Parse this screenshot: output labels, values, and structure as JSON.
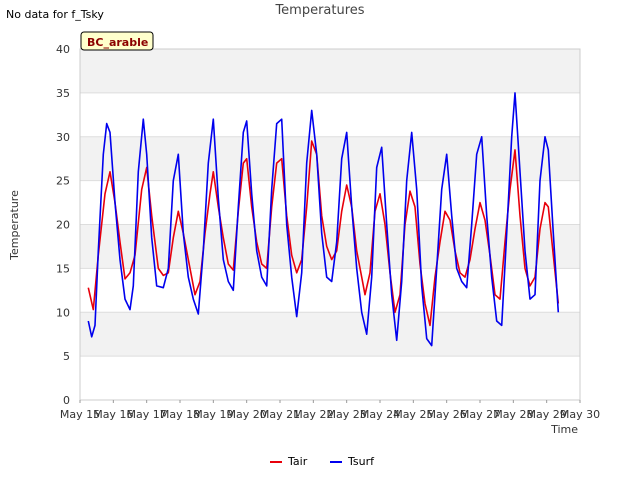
{
  "note": "No data for f_Tsky",
  "chart_data": {
    "type": "line",
    "title": "Temperatures",
    "xlabel": "Time",
    "ylabel": "Temperature",
    "site_label": "BC_arable",
    "ylim": [
      0,
      40
    ],
    "xlim": [
      15,
      30
    ],
    "yticks": [
      0,
      5,
      10,
      15,
      20,
      25,
      30,
      35,
      40
    ],
    "xticks": [
      {
        "value": 15,
        "label": "May 15"
      },
      {
        "value": 16,
        "label": "May 16"
      },
      {
        "value": 17,
        "label": "May 17"
      },
      {
        "value": 18,
        "label": "May 18"
      },
      {
        "value": 19,
        "label": "May 19"
      },
      {
        "value": 20,
        "label": "May 20"
      },
      {
        "value": 21,
        "label": "May 21"
      },
      {
        "value": 22,
        "label": "May 22"
      },
      {
        "value": 23,
        "label": "May 23"
      },
      {
        "value": 24,
        "label": "May 24"
      },
      {
        "value": 25,
        "label": "May 25"
      },
      {
        "value": 26,
        "label": "May 26"
      },
      {
        "value": 27,
        "label": "May 27"
      },
      {
        "value": 28,
        "label": "May 28"
      },
      {
        "value": 29,
        "label": "May 29"
      },
      {
        "value": 30,
        "label": "May 30"
      }
    ],
    "series": [
      {
        "name": "Tair",
        "color": "#e8000b",
        "points": [
          [
            15.25,
            12.8
          ],
          [
            15.4,
            10.3
          ],
          [
            15.55,
            16.5
          ],
          [
            15.75,
            23.5
          ],
          [
            15.9,
            26.0
          ],
          [
            16.05,
            22.5
          ],
          [
            16.2,
            18.0
          ],
          [
            16.35,
            13.8
          ],
          [
            16.5,
            14.5
          ],
          [
            16.65,
            16.5
          ],
          [
            16.85,
            24.0
          ],
          [
            17.0,
            26.5
          ],
          [
            17.15,
            21.0
          ],
          [
            17.35,
            15.0
          ],
          [
            17.5,
            14.2
          ],
          [
            17.65,
            14.5
          ],
          [
            17.8,
            18.5
          ],
          [
            17.95,
            21.5
          ],
          [
            18.1,
            19.0
          ],
          [
            18.3,
            15.0
          ],
          [
            18.45,
            12.0
          ],
          [
            18.6,
            13.5
          ],
          [
            18.75,
            19.0
          ],
          [
            18.9,
            23.5
          ],
          [
            19.0,
            26.0
          ],
          [
            19.15,
            22.0
          ],
          [
            19.3,
            18.5
          ],
          [
            19.45,
            15.5
          ],
          [
            19.6,
            14.8
          ],
          [
            19.75,
            21.5
          ],
          [
            19.9,
            27.0
          ],
          [
            20.0,
            27.5
          ],
          [
            20.15,
            22.0
          ],
          [
            20.3,
            18.0
          ],
          [
            20.45,
            15.5
          ],
          [
            20.6,
            15.0
          ],
          [
            20.75,
            22.0
          ],
          [
            20.9,
            27.0
          ],
          [
            21.05,
            27.5
          ],
          [
            21.2,
            21.0
          ],
          [
            21.35,
            16.5
          ],
          [
            21.5,
            14.5
          ],
          [
            21.65,
            16.0
          ],
          [
            21.8,
            22.0
          ],
          [
            21.95,
            29.5
          ],
          [
            22.1,
            28.0
          ],
          [
            22.25,
            21.0
          ],
          [
            22.4,
            17.5
          ],
          [
            22.55,
            16.0
          ],
          [
            22.7,
            17.0
          ],
          [
            22.85,
            21.5
          ],
          [
            23.0,
            24.5
          ],
          [
            23.15,
            22.0
          ],
          [
            23.3,
            17.0
          ],
          [
            23.45,
            14.0
          ],
          [
            23.55,
            12.0
          ],
          [
            23.7,
            14.5
          ],
          [
            23.85,
            21.5
          ],
          [
            24.0,
            23.5
          ],
          [
            24.15,
            20.0
          ],
          [
            24.3,
            14.5
          ],
          [
            24.45,
            10.0
          ],
          [
            24.6,
            12.0
          ],
          [
            24.75,
            20.0
          ],
          [
            24.9,
            23.8
          ],
          [
            25.05,
            22.0
          ],
          [
            25.2,
            15.5
          ],
          [
            25.35,
            11.0
          ],
          [
            25.5,
            8.5
          ],
          [
            25.65,
            14.0
          ],
          [
            25.8,
            18.0
          ],
          [
            25.95,
            21.5
          ],
          [
            26.1,
            20.5
          ],
          [
            26.25,
            17.0
          ],
          [
            26.4,
            14.5
          ],
          [
            26.55,
            14.0
          ],
          [
            26.7,
            16.0
          ],
          [
            26.85,
            19.5
          ],
          [
            27.0,
            22.5
          ],
          [
            27.15,
            20.5
          ],
          [
            27.3,
            16.5
          ],
          [
            27.45,
            12.0
          ],
          [
            27.6,
            11.5
          ],
          [
            27.75,
            18.0
          ],
          [
            27.9,
            24.0
          ],
          [
            28.05,
            28.5
          ],
          [
            28.2,
            21.0
          ],
          [
            28.35,
            15.0
          ],
          [
            28.5,
            13.0
          ],
          [
            28.65,
            14.0
          ],
          [
            28.8,
            19.5
          ],
          [
            28.95,
            22.5
          ],
          [
            29.05,
            22.0
          ],
          [
            29.2,
            16.5
          ],
          [
            29.35,
            11.0
          ]
        ]
      },
      {
        "name": "Tsurf",
        "color": "#0000ee",
        "points": [
          [
            15.25,
            9.0
          ],
          [
            15.35,
            7.2
          ],
          [
            15.45,
            8.5
          ],
          [
            15.55,
            17.0
          ],
          [
            15.7,
            28.0
          ],
          [
            15.8,
            31.5
          ],
          [
            15.9,
            30.5
          ],
          [
            16.05,
            22.5
          ],
          [
            16.2,
            16.0
          ],
          [
            16.35,
            11.5
          ],
          [
            16.5,
            10.3
          ],
          [
            16.6,
            13.0
          ],
          [
            16.75,
            26.0
          ],
          [
            16.9,
            32.0
          ],
          [
            17.0,
            28.0
          ],
          [
            17.15,
            18.5
          ],
          [
            17.3,
            13.0
          ],
          [
            17.5,
            12.8
          ],
          [
            17.65,
            15.0
          ],
          [
            17.8,
            25.0
          ],
          [
            17.95,
            28.0
          ],
          [
            18.1,
            19.0
          ],
          [
            18.25,
            14.0
          ],
          [
            18.4,
            11.5
          ],
          [
            18.55,
            9.8
          ],
          [
            18.7,
            17.0
          ],
          [
            18.85,
            27.0
          ],
          [
            19.0,
            32.0
          ],
          [
            19.15,
            23.0
          ],
          [
            19.3,
            16.0
          ],
          [
            19.45,
            13.5
          ],
          [
            19.6,
            12.5
          ],
          [
            19.75,
            22.0
          ],
          [
            19.9,
            30.5
          ],
          [
            20.0,
            31.8
          ],
          [
            20.15,
            23.5
          ],
          [
            20.3,
            17.0
          ],
          [
            20.45,
            14.0
          ],
          [
            20.6,
            13.0
          ],
          [
            20.75,
            24.0
          ],
          [
            20.9,
            31.5
          ],
          [
            21.05,
            32.0
          ],
          [
            21.2,
            20.0
          ],
          [
            21.35,
            14.0
          ],
          [
            21.5,
            9.5
          ],
          [
            21.65,
            14.5
          ],
          [
            21.8,
            27.0
          ],
          [
            21.95,
            33.0
          ],
          [
            22.1,
            28.0
          ],
          [
            22.25,
            19.0
          ],
          [
            22.4,
            14.0
          ],
          [
            22.55,
            13.5
          ],
          [
            22.7,
            18.0
          ],
          [
            22.85,
            27.5
          ],
          [
            23.0,
            30.5
          ],
          [
            23.15,
            22.0
          ],
          [
            23.3,
            15.0
          ],
          [
            23.45,
            10.0
          ],
          [
            23.6,
            7.5
          ],
          [
            23.75,
            14.0
          ],
          [
            23.9,
            26.5
          ],
          [
            24.05,
            28.8
          ],
          [
            24.2,
            20.0
          ],
          [
            24.35,
            12.0
          ],
          [
            24.5,
            6.8
          ],
          [
            24.65,
            13.5
          ],
          [
            24.8,
            25.0
          ],
          [
            24.95,
            30.5
          ],
          [
            25.1,
            24.0
          ],
          [
            25.25,
            13.0
          ],
          [
            25.4,
            7.0
          ],
          [
            25.55,
            6.2
          ],
          [
            25.7,
            15.0
          ],
          [
            25.85,
            24.0
          ],
          [
            26.0,
            28.0
          ],
          [
            26.15,
            21.0
          ],
          [
            26.3,
            15.0
          ],
          [
            26.45,
            13.5
          ],
          [
            26.6,
            12.8
          ],
          [
            26.75,
            20.0
          ],
          [
            26.9,
            28.0
          ],
          [
            27.05,
            30.0
          ],
          [
            27.2,
            21.0
          ],
          [
            27.35,
            14.0
          ],
          [
            27.5,
            9.0
          ],
          [
            27.65,
            8.5
          ],
          [
            27.8,
            19.0
          ],
          [
            27.95,
            30.0
          ],
          [
            28.05,
            35.0
          ],
          [
            28.2,
            26.0
          ],
          [
            28.35,
            17.0
          ],
          [
            28.5,
            11.5
          ],
          [
            28.65,
            12.0
          ],
          [
            28.8,
            25.0
          ],
          [
            28.95,
            30.0
          ],
          [
            29.05,
            28.5
          ],
          [
            29.2,
            19.0
          ],
          [
            29.35,
            10.0
          ]
        ]
      }
    ],
    "legend": [
      "Tair",
      "Tsurf"
    ]
  }
}
